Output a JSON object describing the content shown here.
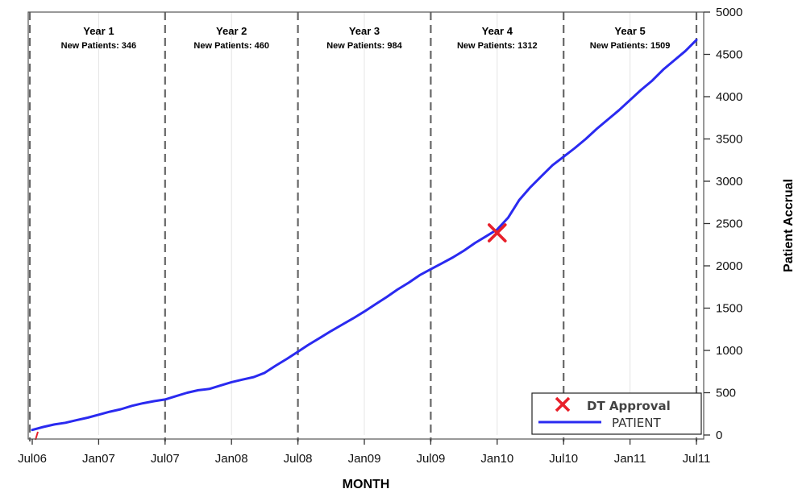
{
  "chart_data": {
    "type": "line",
    "xlabel": "MONTH",
    "ylabel": "Patient Accrual",
    "ylim": [
      0,
      5000
    ],
    "y_ticks": [
      0,
      500,
      1000,
      1500,
      2000,
      2500,
      3000,
      3500,
      4000,
      4500,
      5000
    ],
    "x_ticks": [
      "Jul06",
      "Jan07",
      "Jul07",
      "Jan08",
      "Jul08",
      "Jan09",
      "Jul09",
      "Jan10",
      "Jul10",
      "Jan11",
      "Jul11"
    ],
    "x_range_months": [
      0,
      60
    ],
    "grid": "vertical",
    "legend_position": "bottom-right",
    "periods": [
      {
        "title": "Year 1",
        "subtitle": "New Patients: 346",
        "start": 0,
        "end": 12
      },
      {
        "title": "Year 2",
        "subtitle": "New Patients: 460",
        "start": 12,
        "end": 24
      },
      {
        "title": "Year 3",
        "subtitle": "New Patients: 984",
        "start": 24,
        "end": 36
      },
      {
        "title": "Year 4",
        "subtitle": "New Patients: 1312",
        "start": 36,
        "end": 48
      },
      {
        "title": "Year 5",
        "subtitle": "New Patients: 1509",
        "start": 48,
        "end": 60
      }
    ],
    "series": [
      {
        "name": "PATIENT",
        "color": "#2a2af0",
        "x": [
          0,
          1,
          2,
          3,
          4,
          5,
          6,
          7,
          8,
          9,
          10,
          11,
          12,
          13,
          14,
          15,
          16,
          17,
          18,
          19,
          20,
          21,
          22,
          23,
          24,
          25,
          26,
          27,
          28,
          29,
          30,
          31,
          32,
          33,
          34,
          35,
          36,
          37,
          38,
          39,
          40,
          41,
          42,
          43,
          44,
          45,
          46,
          47,
          48,
          49,
          50,
          51,
          52,
          53,
          54,
          55,
          56,
          57,
          58,
          59,
          60
        ],
        "y": [
          60,
          95,
          125,
          145,
          175,
          205,
          240,
          275,
          305,
          345,
          375,
          400,
          420,
          460,
          500,
          530,
          545,
          585,
          625,
          655,
          685,
          735,
          820,
          900,
          985,
          1070,
          1150,
          1230,
          1305,
          1380,
          1460,
          1545,
          1630,
          1720,
          1800,
          1890,
          1960,
          2030,
          2100,
          2180,
          2270,
          2350,
          2430,
          2570,
          2780,
          2930,
          3060,
          3190,
          3290,
          3390,
          3500,
          3620,
          3730,
          3840,
          3960,
          4080,
          4190,
          4320,
          4430,
          4540,
          4670
        ]
      }
    ],
    "markers": [
      {
        "name": "DT Approval",
        "x": 42,
        "y": 2390,
        "symbol": "x",
        "color": "#e8202a"
      }
    ]
  }
}
